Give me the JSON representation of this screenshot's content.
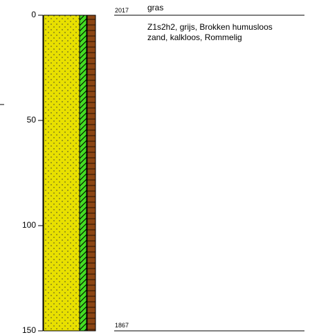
{
  "scale": {
    "ticks": [
      {
        "depth": 0,
        "label": "0"
      },
      {
        "depth": 50,
        "label": "50"
      },
      {
        "depth": 100,
        "label": "100"
      },
      {
        "depth": 150,
        "label": "150"
      }
    ],
    "range": [
      0,
      150
    ]
  },
  "layer": {
    "top_level": "2017",
    "bottom_level": "1867",
    "title": "gras",
    "description_line1": "Z1s2h2, grijs, Brokken humusloos",
    "description_line2": "zand, kalkloos, Rommelig"
  },
  "colors": {
    "sand": "#e8e000",
    "green": "#44dd22",
    "brown": "#8b4513"
  }
}
